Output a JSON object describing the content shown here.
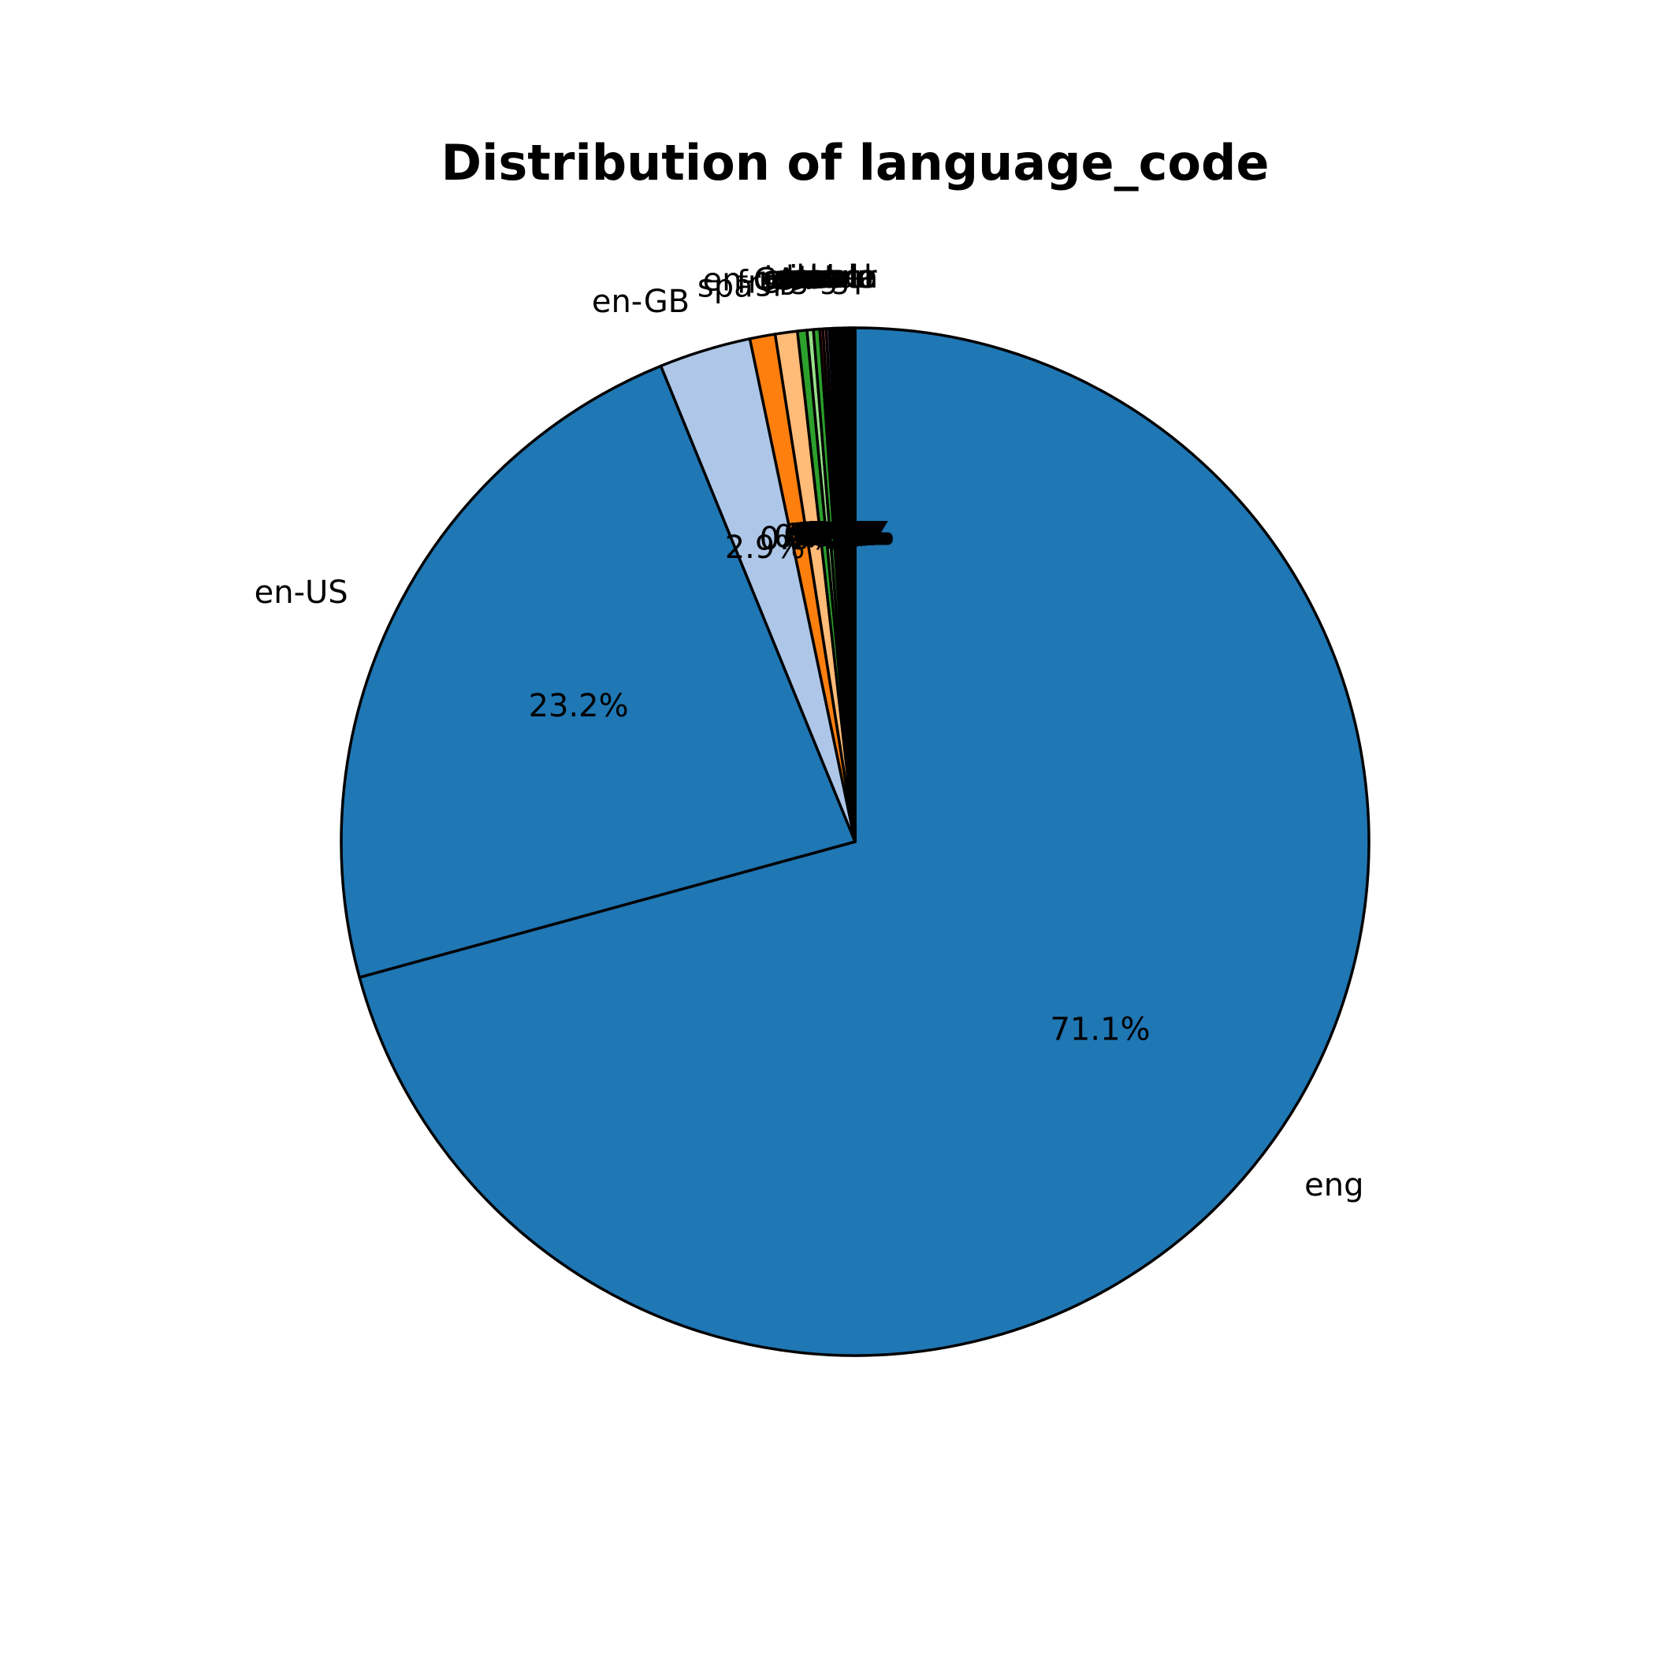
{
  "chart_data": {
    "type": "pie",
    "title": "Distribution of language_code",
    "start_angle_deg": 90,
    "direction": "clockwise",
    "slices": [
      {
        "label": "eng",
        "value": 71.1,
        "pct_label": "71.1%",
        "color": "#1f77b4"
      },
      {
        "label": "en-US",
        "value": 23.2,
        "pct_label": "23.2%",
        "color": "#1f77b4"
      },
      {
        "label": "en-GB",
        "value": 2.9,
        "pct_label": "2.9%",
        "color": "#aec7e8"
      },
      {
        "label": "spa",
        "value": 0.8,
        "pct_label": "0.8%",
        "color": "#ff7f0e"
      },
      {
        "label": "fre",
        "value": 0.7,
        "pct_label": "0.7%",
        "color": "#ffbb78"
      },
      {
        "label": "en-CA",
        "value": 0.3,
        "pct_label": "0.3%",
        "color": "#2ca02c"
      },
      {
        "label": "ger",
        "value": 0.2,
        "pct_label": "0.2%",
        "color": "#98df8a"
      },
      {
        "label": "jpn",
        "value": 0.2,
        "pct_label": "0.2%",
        "color": "#2ca02c"
      },
      {
        "label": "mul",
        "value": 0.1,
        "pct_label": "0.1%",
        "color": "#d62728"
      },
      {
        "label": "ara",
        "value": 0.1,
        "pct_label": "0.1%",
        "color": "#ff9896"
      },
      {
        "label": "zho",
        "value": 0.1,
        "pct_label": "0.1%",
        "color": "#9467bd"
      },
      {
        "label": "grc",
        "value": 0.05,
        "pct_label": "0.1%",
        "color": "#8c564b"
      },
      {
        "label": "ita",
        "value": 0.05,
        "pct_label": "0.1%",
        "color": "#e377c2"
      },
      {
        "label": "por",
        "value": 0.05,
        "pct_label": "0.1%",
        "color": "#7f7f7f"
      },
      {
        "label": "enm",
        "value": 0.05,
        "pct_label": "0.1%",
        "color": "#bcbd22"
      },
      {
        "label": "nl",
        "value": 0.05,
        "pct_label": "0.1%",
        "color": "#17becf"
      },
      {
        "label": "lat",
        "value": 0.05,
        "pct_label": "0.1%",
        "color": "#000000"
      },
      {
        "label": "glg",
        "value": 0.05,
        "pct_label": "0.1%",
        "color": "#000000"
      },
      {
        "label": "swe",
        "value": 0.05,
        "pct_label": "0.1%",
        "color": "#000000"
      },
      {
        "label": "rus",
        "value": 0.05,
        "pct_label": "0.1%",
        "color": "#000000"
      },
      {
        "label": "msa",
        "value": 0.05,
        "pct_label": "0.1%",
        "color": "#000000"
      },
      {
        "label": "wel",
        "value": 0.05,
        "pct_label": "0.1%",
        "color": "#000000"
      },
      {
        "label": "tur",
        "value": 0.05,
        "pct_label": "0.1%",
        "color": "#000000"
      },
      {
        "label": "srp",
        "value": 0.05,
        "pct_label": "0.1%",
        "color": "#000000"
      },
      {
        "label": "nor",
        "value": 0.05,
        "pct_label": "0.1%",
        "color": "#000000"
      },
      {
        "label": "ale",
        "value": 0.05,
        "pct_label": "0.1%",
        "color": "#000000"
      },
      {
        "label": "gla",
        "value": 0.05,
        "pct_label": "0.1%",
        "color": "#000000"
      }
    ]
  }
}
